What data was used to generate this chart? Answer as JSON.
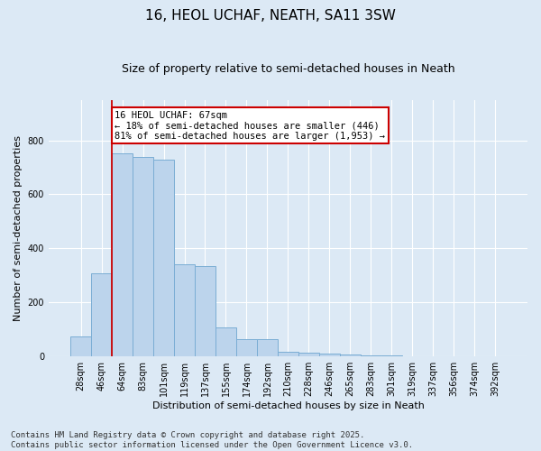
{
  "title": "16, HEOL UCHAF, NEATH, SA11 3SW",
  "subtitle": "Size of property relative to semi-detached houses in Neath",
  "xlabel": "Distribution of semi-detached houses by size in Neath",
  "ylabel": "Number of semi-detached properties",
  "categories": [
    "28sqm",
    "46sqm",
    "64sqm",
    "83sqm",
    "101sqm",
    "119sqm",
    "137sqm",
    "155sqm",
    "174sqm",
    "192sqm",
    "210sqm",
    "228sqm",
    "246sqm",
    "265sqm",
    "283sqm",
    "301sqm",
    "319sqm",
    "337sqm",
    "356sqm",
    "374sqm",
    "392sqm"
  ],
  "values": [
    75,
    307,
    750,
    737,
    728,
    340,
    335,
    108,
    65,
    65,
    18,
    15,
    10,
    8,
    5,
    3,
    2,
    0,
    0,
    0,
    0
  ],
  "bar_color": "#bcd4ec",
  "bar_edge_color": "#7aadd4",
  "annotation_text_line1": "16 HEOL UCHAF: 67sqm",
  "annotation_text_line2": "← 18% of semi-detached houses are smaller (446)",
  "annotation_text_line3": "81% of semi-detached houses are larger (1,953) →",
  "annotation_box_color": "#ffffff",
  "annotation_box_edge_color": "#cc0000",
  "vline_color": "#cc0000",
  "footer_line1": "Contains HM Land Registry data © Crown copyright and database right 2025.",
  "footer_line2": "Contains public sector information licensed under the Open Government Licence v3.0.",
  "ylim": [
    0,
    950
  ],
  "background_color": "#dce9f5",
  "vline_index": 2,
  "title_fontsize": 11,
  "subtitle_fontsize": 9,
  "xlabel_fontsize": 8,
  "ylabel_fontsize": 8,
  "tick_fontsize": 7,
  "annot_fontsize": 7.5,
  "footer_fontsize": 6.5
}
